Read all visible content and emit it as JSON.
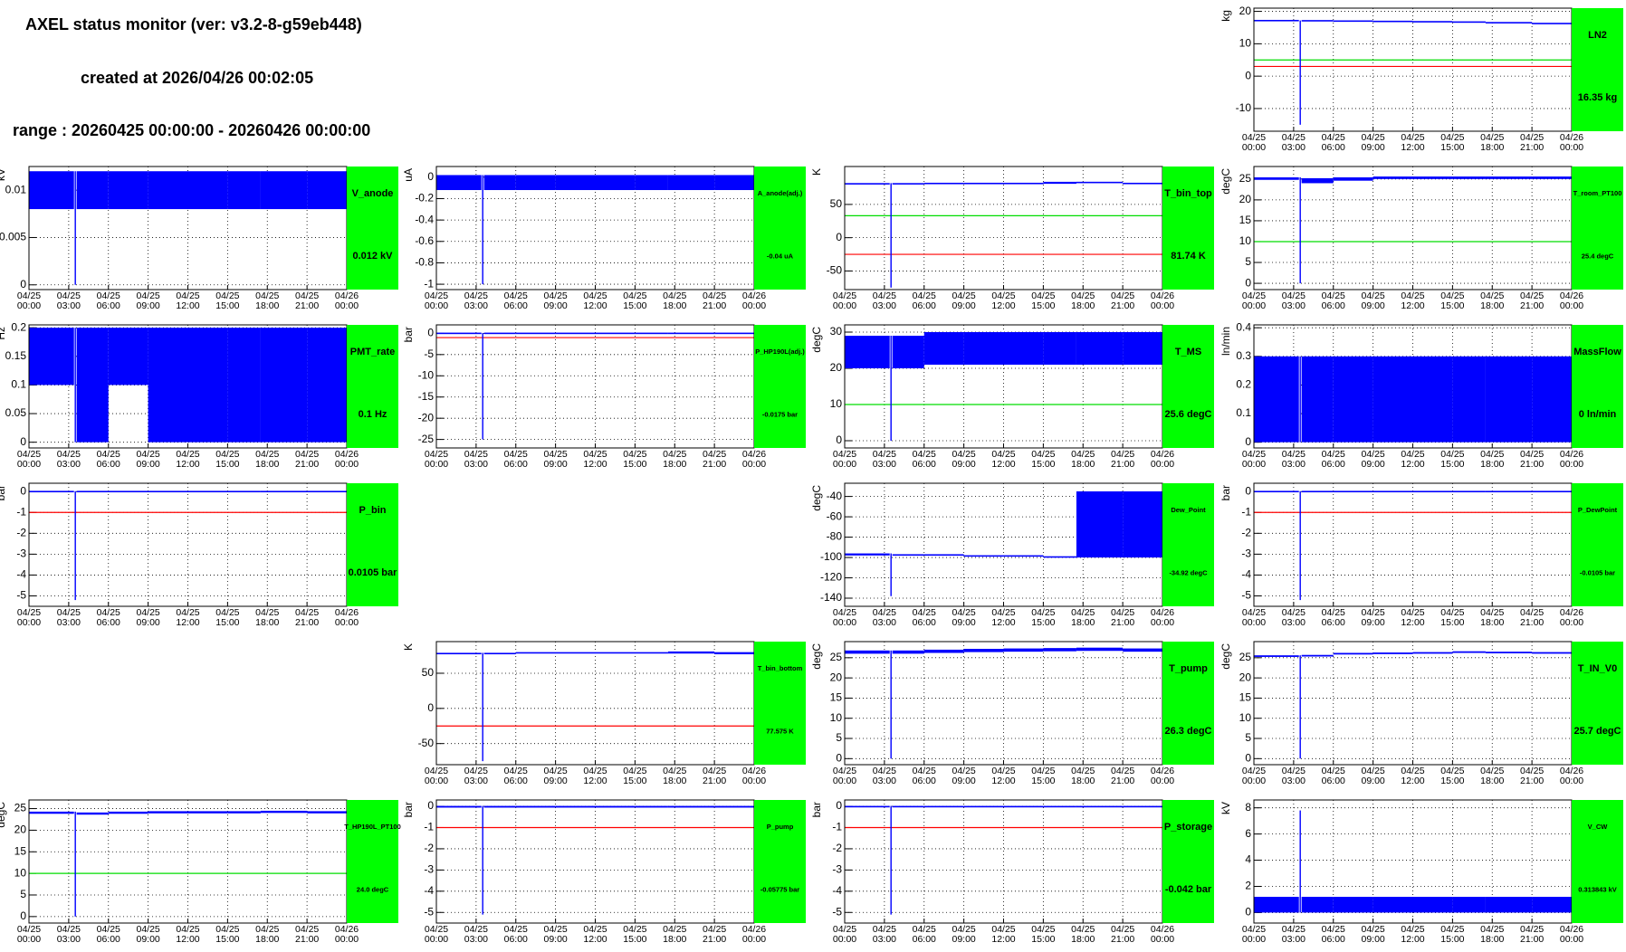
{
  "header": {
    "title": "AXEL status monitor (ver: v3.2-8-g59eb448)",
    "created": "created at 2026/04/26 00:02:05",
    "range": "range : 20260425 00:00:00 - 20260426 00:00:00"
  },
  "x_axis": {
    "xlim": [
      0,
      24
    ],
    "bins": [
      0,
      3.4,
      3.6,
      6,
      9,
      12,
      15,
      17.5,
      21,
      24
    ],
    "xticks": [
      {
        "value": 0,
        "label": "04/25\n00:00"
      },
      {
        "value": 3,
        "label": "04/25\n03:00"
      },
      {
        "value": 6,
        "label": "04/25\n06:00"
      },
      {
        "value": 9,
        "label": "04/25\n09:00"
      },
      {
        "value": 12,
        "label": "04/25\n12:00"
      },
      {
        "value": 15,
        "label": "04/25\n15:00"
      },
      {
        "value": 18,
        "label": "04/25\n18:00"
      },
      {
        "value": 21,
        "label": "04/25\n21:00"
      },
      {
        "value": 24,
        "label": "04/26\n00:00"
      }
    ]
  },
  "chart_data": [
    {
      "type": "line",
      "title": "LN2",
      "value_label": "16.35 kg",
      "ylabel": "kg",
      "ylim": [
        -17,
        21
      ],
      "yticks": [
        -10,
        0,
        10,
        20
      ],
      "thresholds": [
        {
          "color": "#ff0000",
          "value": 3
        },
        {
          "color": "#00dd00",
          "value": 5
        }
      ],
      "min": [
        17.0,
        -15,
        17.0,
        16.9,
        16.8,
        16.7,
        16.6,
        16.4,
        16.1
      ],
      "max": [
        17.3,
        17.2,
        17.2,
        17.1,
        17.0,
        16.9,
        16.8,
        16.6,
        16.4
      ]
    },
    {
      "type": "line",
      "title": "V_anode",
      "value_label": "0.012 kV",
      "ylabel": "kV",
      "ylim": [
        -0.0005,
        0.0125
      ],
      "yticks": [
        0,
        0.005,
        0.01
      ],
      "thresholds": [],
      "min": [
        0.008,
        0,
        0.008,
        0.008,
        0.008,
        0.008,
        0.008,
        0.008,
        0.008
      ],
      "max": [
        0.012,
        0.012,
        0.012,
        0.012,
        0.012,
        0.012,
        0.012,
        0.012,
        0.012
      ]
    },
    {
      "type": "line",
      "title": "A_anode(adj.)",
      "value_label": "-0.04 uA",
      "ylabel": "uA",
      "ylim": [
        -1.05,
        0.1
      ],
      "yticks": [
        -1,
        -0.8,
        -0.6,
        -0.4,
        -0.2,
        0
      ],
      "thresholds": [],
      "min": [
        -0.12,
        -1,
        -0.12,
        -0.12,
        -0.12,
        -0.12,
        -0.12,
        -0.12,
        -0.12
      ],
      "max": [
        0.02,
        0.02,
        0.02,
        0.02,
        0.02,
        0.02,
        0.02,
        0.02,
        0.02
      ]
    },
    {
      "type": "line",
      "title": "T_bin_top",
      "value_label": "81.74 K",
      "ylabel": "K",
      "ylim": [
        -78,
        107
      ],
      "yticks": [
        -50,
        0,
        50
      ],
      "thresholds": [
        {
          "color": "#ff0000",
          "value": -25
        },
        {
          "color": "#00dd00",
          "value": 33
        }
      ],
      "min": [
        80,
        -75,
        80,
        81,
        81,
        81,
        81,
        82,
        81
      ],
      "max": [
        82,
        82,
        82,
        82,
        82,
        82,
        84,
        84,
        82
      ]
    },
    {
      "type": "line",
      "title": "T_room_PT100",
      "value_label": "25.4 degC",
      "ylabel": "degC",
      "ylim": [
        -1.5,
        28
      ],
      "yticks": [
        0,
        5,
        10,
        15,
        20,
        25
      ],
      "thresholds": [
        {
          "color": "#00dd00",
          "value": 10
        }
      ],
      "min": [
        24.8,
        0,
        24,
        24.6,
        25,
        25,
        25,
        25,
        25
      ],
      "max": [
        25.4,
        25.4,
        25.2,
        25.4,
        25.6,
        25.6,
        25.6,
        25.6,
        25.6
      ]
    },
    {
      "type": "line",
      "title": "PMT_rate",
      "value_label": "0.1 Hz",
      "ylabel": "Hz",
      "ylim": [
        -0.01,
        0.205
      ],
      "yticks": [
        0,
        0.05,
        0.1,
        0.15,
        0.2
      ],
      "thresholds": [],
      "min": [
        0.1,
        0,
        0,
        0.1,
        0,
        0,
        0,
        0,
        0
      ],
      "max": [
        0.2,
        0.2,
        0.2,
        0.2,
        0.2,
        0.2,
        0.2,
        0.2,
        0.2
      ]
    },
    {
      "type": "line",
      "title": "P_HP190L(adj.)",
      "value_label": "-0.0175 bar",
      "ylabel": "bar",
      "ylim": [
        -27,
        2
      ],
      "yticks": [
        -25,
        -20,
        -15,
        -10,
        -5,
        0
      ],
      "thresholds": [
        {
          "color": "#ff0000",
          "value": -1
        }
      ],
      "min": [
        -0.1,
        -25,
        -0.1,
        -0.1,
        -0.1,
        -0.1,
        -0.1,
        -0.1,
        -0.1
      ],
      "max": [
        0.1,
        0.1,
        0.1,
        0.1,
        0.1,
        0.1,
        0.1,
        0.1,
        0.1
      ]
    },
    {
      "type": "line",
      "title": "T_MS",
      "value_label": "25.6 degC",
      "ylabel": "degC",
      "ylim": [
        -2,
        32
      ],
      "yticks": [
        0,
        10,
        20,
        30
      ],
      "thresholds": [
        {
          "color": "#00dd00",
          "value": 10
        }
      ],
      "min": [
        20,
        0,
        20,
        21,
        21,
        21,
        21,
        21,
        21
      ],
      "max": [
        29,
        29,
        29,
        30,
        30,
        30,
        30,
        30,
        30
      ]
    },
    {
      "type": "line",
      "title": "MassFlow",
      "value_label": "0 ln/min",
      "ylabel": "ln/min",
      "ylim": [
        -0.02,
        0.41
      ],
      "yticks": [
        0,
        0.1,
        0.2,
        0.3,
        0.4
      ],
      "thresholds": [],
      "min": [
        0,
        0,
        0,
        0,
        0,
        0,
        0,
        0,
        0
      ],
      "max": [
        0.3,
        0.3,
        0.3,
        0.3,
        0.3,
        0.3,
        0.3,
        0.3,
        0.3
      ]
    },
    {
      "type": "line",
      "title": "P_bin",
      "value_label": "0.0105 bar",
      "ylabel": "bar",
      "ylim": [
        -5.5,
        0.4
      ],
      "yticks": [
        -5,
        -4,
        -3,
        -2,
        -1,
        0
      ],
      "thresholds": [
        {
          "color": "#ff0000",
          "value": -1
        }
      ],
      "min": [
        -0.02,
        -5.2,
        -0.02,
        -0.02,
        -0.02,
        -0.02,
        -0.02,
        -0.02,
        -0.02
      ],
      "max": [
        0.02,
        0.02,
        0.02,
        0.02,
        0.02,
        0.02,
        0.02,
        0.02,
        0.02
      ]
    },
    {
      "type": "line",
      "title": "Dew_Point",
      "value_label": "-34.92 degC",
      "ylabel": "degC",
      "ylim": [
        -148,
        -27
      ],
      "yticks": [
        -140,
        -120,
        -100,
        -80,
        -60,
        -40
      ],
      "thresholds": [],
      "min": [
        -98,
        -138,
        -98,
        -98,
        -99,
        -99,
        -100,
        -100,
        -100
      ],
      "max": [
        -96,
        -96,
        -97,
        -97,
        -98,
        -98,
        -99,
        -35,
        -35
      ]
    },
    {
      "type": "line",
      "title": "P_DewPoint",
      "value_label": "-0.0105 bar",
      "ylabel": "bar",
      "ylim": [
        -5.5,
        0.4
      ],
      "yticks": [
        -5,
        -4,
        -3,
        -2,
        -1,
        0
      ],
      "thresholds": [
        {
          "color": "#ff0000",
          "value": -1
        }
      ],
      "min": [
        -0.02,
        -5.2,
        -0.02,
        -0.02,
        -0.02,
        -0.02,
        -0.02,
        -0.02,
        -0.02
      ],
      "max": [
        0.02,
        0.02,
        0.02,
        0.02,
        0.02,
        0.02,
        0.02,
        0.02,
        0.02
      ]
    },
    {
      "type": "line",
      "title": "T_bin_bottom",
      "value_label": "77.575 K",
      "ylabel": "K",
      "ylim": [
        -80,
        95
      ],
      "yticks": [
        -50,
        0,
        50
      ],
      "thresholds": [
        {
          "color": "#ff0000",
          "value": -25
        }
      ],
      "min": [
        77,
        -75,
        77,
        78,
        78,
        78,
        78,
        78,
        77
      ],
      "max": [
        79,
        79,
        79,
        80,
        80,
        80,
        80,
        81,
        80
      ]
    },
    {
      "type": "line",
      "title": "T_pump",
      "value_label": "26.3 degC",
      "ylabel": "degC",
      "ylim": [
        -1.5,
        29
      ],
      "yticks": [
        0,
        5,
        10,
        15,
        20,
        25
      ],
      "thresholds": [],
      "min": [
        26,
        0,
        26,
        26.2,
        26.4,
        26.5,
        26.6,
        26.7,
        26.5
      ],
      "max": [
        26.8,
        26.8,
        26.8,
        27,
        27.2,
        27.3,
        27.4,
        27.5,
        27.3
      ]
    },
    {
      "type": "line",
      "title": "T_IN_V0",
      "value_label": "25.7 degC",
      "ylabel": "degC",
      "ylim": [
        -1.5,
        29
      ],
      "yticks": [
        0,
        5,
        10,
        15,
        20,
        25
      ],
      "thresholds": [],
      "min": [
        25.2,
        0,
        25.3,
        25.8,
        25.9,
        26,
        26.2,
        26.1,
        26
      ],
      "max": [
        25.6,
        25.6,
        25.7,
        26.2,
        26.3,
        26.4,
        26.6,
        26.5,
        26.4
      ]
    },
    {
      "type": "line",
      "title": "T_HP190L_PT100",
      "value_label": "24.0 degC",
      "ylabel": "degC",
      "ylim": [
        -1.5,
        27
      ],
      "yticks": [
        0,
        5,
        10,
        15,
        20,
        25
      ],
      "thresholds": [
        {
          "color": "#00dd00",
          "value": 10
        }
      ],
      "min": [
        23.8,
        0,
        23.6,
        23.8,
        23.9,
        23.9,
        23.9,
        24,
        23.9
      ],
      "max": [
        24.3,
        24.3,
        24.1,
        24.3,
        24.4,
        24.4,
        24.4,
        24.5,
        24.4
      ]
    },
    {
      "type": "line",
      "title": "P_pump",
      "value_label": "-0.05775 bar",
      "ylabel": "bar",
      "ylim": [
        -5.5,
        0.3
      ],
      "yticks": [
        -5,
        -4,
        -3,
        -2,
        -1,
        0
      ],
      "thresholds": [
        {
          "color": "#ff0000",
          "value": -1
        }
      ],
      "min": [
        -0.06,
        -5.1,
        -0.06,
        -0.06,
        -0.06,
        -0.06,
        -0.06,
        -0.06,
        -0.06
      ],
      "max": [
        0.02,
        0.02,
        0.02,
        0.02,
        0.02,
        0.02,
        0.02,
        0.02,
        0.02
      ]
    },
    {
      "type": "line",
      "title": "P_storage",
      "value_label": "-0.042 bar",
      "ylabel": "bar",
      "ylim": [
        -5.5,
        0.3
      ],
      "yticks": [
        -5,
        -4,
        -3,
        -2,
        -1,
        0
      ],
      "thresholds": [
        {
          "color": "#ff0000",
          "value": -1
        }
      ],
      "min": [
        -0.05,
        -5.1,
        -0.05,
        -0.05,
        -0.05,
        -0.05,
        -0.05,
        -0.05,
        -0.05
      ],
      "max": [
        0.02,
        0.02,
        0.02,
        0.02,
        0.02,
        0.02,
        0.02,
        0.02,
        0.02
      ]
    },
    {
      "type": "line",
      "title": "V_CW",
      "value_label": "0.313843 kV",
      "ylabel": "kV",
      "ylim": [
        -0.8,
        8.6
      ],
      "yticks": [
        0,
        2,
        4,
        6,
        8
      ],
      "thresholds": [],
      "min": [
        0,
        0,
        0,
        0,
        0,
        0,
        0,
        0,
        0
      ],
      "max": [
        1.2,
        7.8,
        1.2,
        1.2,
        1.2,
        1.2,
        1.2,
        1.2,
        1.2
      ]
    }
  ]
}
